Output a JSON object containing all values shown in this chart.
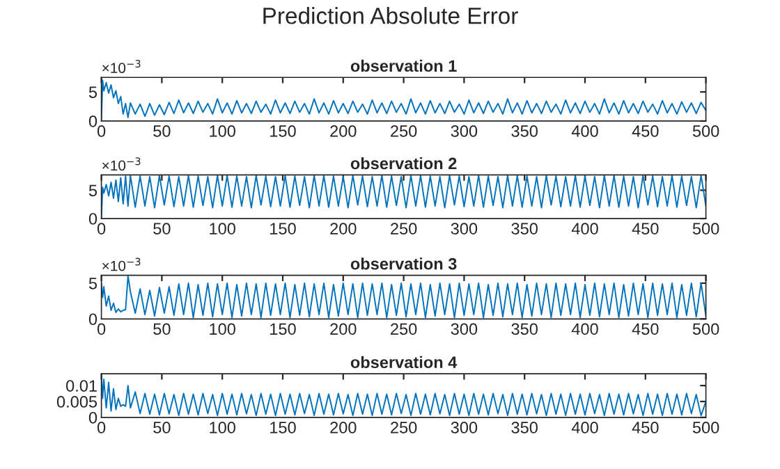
{
  "chart_data": [
    {
      "type": "line",
      "title": "Prediction Absolute Error",
      "subtitle": "observation 1",
      "xlim": [
        0,
        500
      ],
      "xticks": [
        0,
        50,
        100,
        150,
        200,
        250,
        300,
        350,
        400,
        450,
        500
      ],
      "ylim": [
        0,
        7.5
      ],
      "yticks": [
        0,
        5
      ],
      "annotations": [
        "×10$^{−3}$"
      ],
      "grid": false,
      "legend": false,
      "x": [
        0,
        1,
        2,
        4,
        6,
        8,
        10,
        12,
        14,
        16,
        18,
        20,
        22,
        24,
        28,
        32,
        36,
        40,
        44,
        48,
        52,
        56,
        60,
        64,
        68,
        72,
        76,
        80,
        84,
        88,
        92,
        96,
        100,
        104,
        108,
        112,
        116,
        120,
        124,
        128,
        132,
        136,
        140,
        144,
        148,
        152,
        156,
        160,
        164,
        168,
        172,
        176,
        180,
        184,
        188,
        192,
        196,
        200,
        204,
        208,
        212,
        216,
        220,
        224,
        228,
        232,
        236,
        240,
        244,
        248,
        252,
        256,
        260,
        264,
        268,
        272,
        276,
        280,
        284,
        288,
        292,
        296,
        300,
        304,
        308,
        312,
        316,
        320,
        324,
        328,
        332,
        336,
        340,
        344,
        348,
        352,
        356,
        360,
        364,
        368,
        372,
        376,
        380,
        384,
        388,
        392,
        396,
        400,
        404,
        408,
        412,
        416,
        420,
        424,
        428,
        432,
        436,
        440,
        444,
        448,
        452,
        456,
        460,
        464,
        468,
        472,
        476,
        480,
        484,
        488,
        492,
        496,
        500
      ],
      "series": [
        {
          "color": "#0072bd",
          "values": [
            0,
            7.0,
            5.2,
            6.6,
            4.8,
            6.2,
            4.0,
            5.2,
            3.0,
            4.2,
            1.2,
            3.0,
            0.6,
            3.1,
            1.2,
            2.9,
            0.8,
            3.0,
            1.0,
            2.8,
            1.1,
            3.2,
            1.3,
            3.6,
            1.4,
            3.1,
            1.3,
            3.4,
            1.5,
            3.0,
            1.2,
            3.8,
            1.4,
            3.1,
            1.2,
            3.5,
            1.4,
            3.0,
            1.3,
            3.4,
            1.5,
            2.9,
            1.2,
            3.6,
            1.4,
            3.1,
            1.3,
            3.4,
            1.5,
            3.0,
            1.2,
            3.8,
            1.4,
            3.1,
            1.2,
            3.5,
            1.4,
            3.0,
            1.3,
            3.4,
            1.5,
            2.9,
            1.2,
            3.6,
            1.4,
            3.1,
            1.3,
            3.4,
            1.5,
            3.0,
            1.2,
            3.8,
            1.4,
            3.1,
            1.2,
            3.5,
            1.4,
            3.0,
            1.3,
            3.4,
            1.5,
            2.9,
            1.2,
            3.6,
            1.4,
            3.1,
            1.3,
            3.4,
            1.5,
            3.0,
            1.2,
            3.8,
            1.4,
            3.1,
            1.2,
            3.5,
            1.4,
            3.0,
            1.3,
            3.4,
            1.5,
            2.9,
            1.2,
            3.6,
            1.4,
            3.1,
            1.3,
            3.4,
            1.5,
            3.0,
            1.2,
            3.8,
            1.4,
            3.1,
            1.2,
            3.5,
            1.4,
            3.0,
            1.3,
            3.4,
            1.5,
            2.9,
            1.2,
            3.5,
            1.4,
            3.0,
            1.2,
            3.3,
            1.5,
            3.1,
            1.3,
            3.2,
            1.8
          ]
        }
      ]
    },
    {
      "type": "line",
      "title": "observation 2",
      "xlim": [
        0,
        500
      ],
      "xticks": [
        0,
        50,
        100,
        150,
        200,
        250,
        300,
        350,
        400,
        450,
        500
      ],
      "ylim": [
        0,
        7.7
      ],
      "yticks": [
        0,
        5
      ],
      "annotations": [
        "×10$^{−3}$"
      ],
      "grid": false,
      "legend": false,
      "x": [
        0,
        1,
        2,
        4,
        6,
        8,
        10,
        12,
        14,
        16,
        18,
        20,
        22,
        24,
        28,
        32,
        36,
        40,
        44,
        48,
        52,
        56,
        60,
        64,
        68,
        72,
        76,
        80,
        84,
        88,
        92,
        96,
        100,
        104,
        108,
        112,
        116,
        120,
        124,
        128,
        132,
        136,
        140,
        144,
        148,
        152,
        156,
        160,
        164,
        168,
        172,
        176,
        180,
        184,
        188,
        192,
        196,
        200,
        204,
        208,
        212,
        216,
        220,
        224,
        228,
        232,
        236,
        240,
        244,
        248,
        252,
        256,
        260,
        264,
        268,
        272,
        276,
        280,
        284,
        288,
        292,
        296,
        300,
        304,
        308,
        312,
        316,
        320,
        324,
        328,
        332,
        336,
        340,
        344,
        348,
        352,
        356,
        360,
        364,
        368,
        372,
        376,
        380,
        384,
        388,
        392,
        396,
        400,
        404,
        408,
        412,
        416,
        420,
        424,
        428,
        432,
        436,
        440,
        444,
        448,
        452,
        456,
        460,
        464,
        468,
        472,
        476,
        480,
        484,
        488,
        492,
        496,
        500
      ],
      "series": [
        {
          "color": "#0072bd",
          "values": [
            0,
            5.5,
            4.5,
            6.0,
            4.0,
            6.4,
            3.6,
            6.8,
            3.0,
            7.2,
            2.6,
            7.5,
            2.2,
            7.6,
            2.0,
            7.5,
            2.2,
            7.4,
            1.9,
            7.6,
            2.4,
            7.5,
            2.1,
            7.4,
            2.2,
            7.6,
            2.0,
            7.5,
            2.3,
            7.4,
            1.9,
            7.6,
            2.2,
            7.6,
            2.0,
            7.5,
            2.2,
            7.4,
            1.9,
            7.6,
            2.4,
            7.5,
            2.1,
            7.4,
            2.2,
            7.6,
            2.0,
            7.5,
            2.3,
            7.4,
            1.9,
            7.6,
            2.2,
            7.6,
            2.0,
            7.5,
            2.2,
            7.4,
            1.9,
            7.6,
            2.4,
            7.5,
            2.1,
            7.4,
            2.2,
            7.6,
            2.0,
            7.5,
            2.3,
            7.4,
            1.9,
            7.6,
            2.2,
            7.6,
            2.0,
            7.5,
            2.2,
            7.4,
            1.9,
            7.6,
            2.4,
            7.5,
            2.1,
            7.4,
            2.2,
            7.6,
            2.0,
            7.5,
            2.3,
            7.4,
            1.9,
            7.6,
            2.2,
            7.6,
            2.0,
            7.5,
            2.2,
            7.4,
            1.9,
            7.6,
            2.4,
            7.5,
            2.1,
            7.4,
            2.2,
            7.6,
            2.0,
            7.5,
            2.3,
            7.4,
            1.9,
            7.6,
            2.2,
            7.6,
            2.0,
            7.5,
            2.2,
            7.4,
            1.9,
            7.6,
            2.4,
            7.5,
            2.1,
            7.4,
            2.2,
            7.6,
            2.0,
            7.5,
            2.3,
            7.4,
            1.9,
            7.6,
            2.2
          ]
        }
      ]
    },
    {
      "type": "line",
      "title": "observation 3",
      "xlim": [
        0,
        500
      ],
      "xticks": [
        0,
        50,
        100,
        150,
        200,
        250,
        300,
        350,
        400,
        450,
        500
      ],
      "ylim": [
        0,
        6.1
      ],
      "yticks": [
        0,
        5
      ],
      "annotations": [
        "×10$^{−3}$"
      ],
      "grid": false,
      "legend": false,
      "x": [
        0,
        1,
        2,
        4,
        6,
        8,
        10,
        12,
        14,
        16,
        18,
        20,
        22,
        24,
        28,
        32,
        36,
        40,
        44,
        48,
        52,
        56,
        60,
        64,
        68,
        72,
        76,
        80,
        84,
        88,
        92,
        96,
        100,
        104,
        108,
        112,
        116,
        120,
        124,
        128,
        132,
        136,
        140,
        144,
        148,
        152,
        156,
        160,
        164,
        168,
        172,
        176,
        180,
        184,
        188,
        192,
        196,
        200,
        204,
        208,
        212,
        216,
        220,
        224,
        228,
        232,
        236,
        240,
        244,
        248,
        252,
        256,
        260,
        264,
        268,
        272,
        276,
        280,
        284,
        288,
        292,
        296,
        300,
        304,
        308,
        312,
        316,
        320,
        324,
        328,
        332,
        336,
        340,
        344,
        348,
        352,
        356,
        360,
        364,
        368,
        372,
        376,
        380,
        384,
        388,
        392,
        396,
        400,
        404,
        408,
        412,
        416,
        420,
        424,
        428,
        432,
        436,
        440,
        444,
        448,
        452,
        456,
        460,
        464,
        468,
        472,
        476,
        480,
        484,
        488,
        492,
        496,
        500
      ],
      "series": [
        {
          "color": "#0072bd",
          "values": [
            5.0,
            3.0,
            4.5,
            1.8,
            3.2,
            1.2,
            2.2,
            0.9,
            1.4,
            1.0,
            1.2,
            1.3,
            6.0,
            3.8,
            0.8,
            4.2,
            0.6,
            4.0,
            0.4,
            4.4,
            0.8,
            4.5,
            0.5,
            4.9,
            0.6,
            5.0,
            0.2,
            4.8,
            0.5,
            5.0,
            0.3,
            4.9,
            0.6,
            5.0,
            0.2,
            4.8,
            0.4,
            5.0,
            0.6,
            4.9,
            0.2,
            5.0,
            0.5,
            4.9,
            0.6,
            5.0,
            0.2,
            4.8,
            0.5,
            5.0,
            0.3,
            4.9,
            0.6,
            5.0,
            0.2,
            4.8,
            0.4,
            5.0,
            0.6,
            4.9,
            0.2,
            5.0,
            0.5,
            4.9,
            0.6,
            5.0,
            0.2,
            4.8,
            0.5,
            5.0,
            0.3,
            4.9,
            0.6,
            5.0,
            0.2,
            4.8,
            0.4,
            5.0,
            0.6,
            4.9,
            0.2,
            5.0,
            0.5,
            4.9,
            0.6,
            5.0,
            0.2,
            4.8,
            0.5,
            5.0,
            0.3,
            4.9,
            0.6,
            5.0,
            0.2,
            4.8,
            0.4,
            5.0,
            0.6,
            4.9,
            0.2,
            5.0,
            0.5,
            4.9,
            0.6,
            5.0,
            0.2,
            4.8,
            0.5,
            5.0,
            0.3,
            4.9,
            0.6,
            5.0,
            0.2,
            4.8,
            0.4,
            5.0,
            0.6,
            4.9,
            0.2,
            5.0,
            0.5,
            4.9,
            0.6,
            5.0,
            0.2,
            4.8,
            0.5,
            5.0,
            0.3,
            5.0,
            0.4
          ]
        }
      ]
    },
    {
      "type": "line",
      "title": "observation 4",
      "xlim": [
        0,
        500
      ],
      "xticks": [
        0,
        50,
        100,
        150,
        200,
        250,
        300,
        350,
        400,
        450,
        500
      ],
      "ylim": [
        0,
        0.0137
      ],
      "yticks": [
        0,
        0.005,
        0.01
      ],
      "grid": false,
      "legend": false,
      "x": [
        0,
        1,
        2,
        4,
        6,
        8,
        10,
        12,
        14,
        16,
        18,
        20,
        22,
        24,
        28,
        32,
        36,
        40,
        44,
        48,
        52,
        56,
        60,
        64,
        68,
        72,
        76,
        80,
        84,
        88,
        92,
        96,
        100,
        104,
        108,
        112,
        116,
        120,
        124,
        128,
        132,
        136,
        140,
        144,
        148,
        152,
        156,
        160,
        164,
        168,
        172,
        176,
        180,
        184,
        188,
        192,
        196,
        200,
        204,
        208,
        212,
        216,
        220,
        224,
        228,
        232,
        236,
        240,
        244,
        248,
        252,
        256,
        260,
        264,
        268,
        272,
        276,
        280,
        284,
        288,
        292,
        296,
        300,
        304,
        308,
        312,
        316,
        320,
        324,
        328,
        332,
        336,
        340,
        344,
        348,
        352,
        356,
        360,
        364,
        368,
        372,
        376,
        380,
        384,
        388,
        392,
        396,
        400,
        404,
        408,
        412,
        416,
        420,
        424,
        428,
        432,
        436,
        440,
        444,
        448,
        452,
        456,
        460,
        464,
        468,
        472,
        476,
        480,
        484,
        488,
        492,
        496,
        500
      ],
      "series": [
        {
          "color": "#0072bd",
          "values": [
            0.0135,
            0.006,
            0.012,
            0.003,
            0.011,
            0.002,
            0.009,
            0.0025,
            0.006,
            0.0035,
            0.004,
            0.0035,
            0.01,
            0.003,
            0.008,
            0.0012,
            0.0075,
            0.001,
            0.0073,
            0.0008,
            0.0075,
            0.0011,
            0.0072,
            0.0006,
            0.0075,
            0.001,
            0.0073,
            0.0008,
            0.0075,
            0.0012,
            0.0072,
            0.0006,
            0.0075,
            0.001,
            0.0073,
            0.0008,
            0.0075,
            0.0011,
            0.0072,
            0.0006,
            0.0075,
            0.001,
            0.0073,
            0.0006,
            0.0075,
            0.001,
            0.0073,
            0.0008,
            0.0075,
            0.0012,
            0.0072,
            0.0006,
            0.0075,
            0.001,
            0.0073,
            0.0008,
            0.0075,
            0.0011,
            0.0072,
            0.0006,
            0.0075,
            0.001,
            0.0073,
            0.0006,
            0.0075,
            0.001,
            0.0073,
            0.0008,
            0.0075,
            0.0012,
            0.0072,
            0.0006,
            0.0075,
            0.001,
            0.0073,
            0.0008,
            0.0075,
            0.0011,
            0.0072,
            0.0006,
            0.0075,
            0.001,
            0.0073,
            0.0006,
            0.0075,
            0.001,
            0.0073,
            0.0008,
            0.0075,
            0.0012,
            0.0072,
            0.0006,
            0.0075,
            0.001,
            0.0073,
            0.0008,
            0.0075,
            0.0011,
            0.0072,
            0.0006,
            0.0075,
            0.001,
            0.0073,
            0.0006,
            0.0075,
            0.001,
            0.0073,
            0.0008,
            0.0075,
            0.0012,
            0.0072,
            0.0006,
            0.0075,
            0.001,
            0.0073,
            0.0008,
            0.0075,
            0.0011,
            0.0072,
            0.0006,
            0.0075,
            0.001,
            0.0073,
            0.0006,
            0.0075,
            0.001,
            0.0073,
            0.0008,
            0.0075,
            0.0012,
            0.0072,
            0.0006,
            0.005
          ]
        }
      ]
    }
  ]
}
